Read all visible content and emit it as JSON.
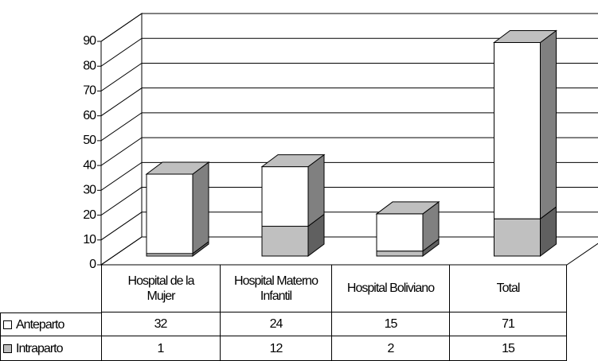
{
  "chart_data": {
    "type": "bar",
    "stacked": true,
    "categories": [
      "Hospital de la Mujer",
      "Hospital Materno Infantil",
      "Hospital Boliviano",
      "Total"
    ],
    "series": [
      {
        "name": "Intraparto",
        "color": "#c0c0c0",
        "values": [
          1,
          12,
          2,
          15
        ]
      },
      {
        "name": "Anteparto",
        "color": "#ffffff",
        "values": [
          32,
          24,
          15,
          71
        ]
      }
    ],
    "table_order": [
      1,
      0
    ],
    "ylim": [
      0,
      90
    ],
    "yticks": [
      0,
      10,
      20,
      30,
      40,
      50,
      60,
      70,
      80,
      90
    ],
    "grid": true
  }
}
